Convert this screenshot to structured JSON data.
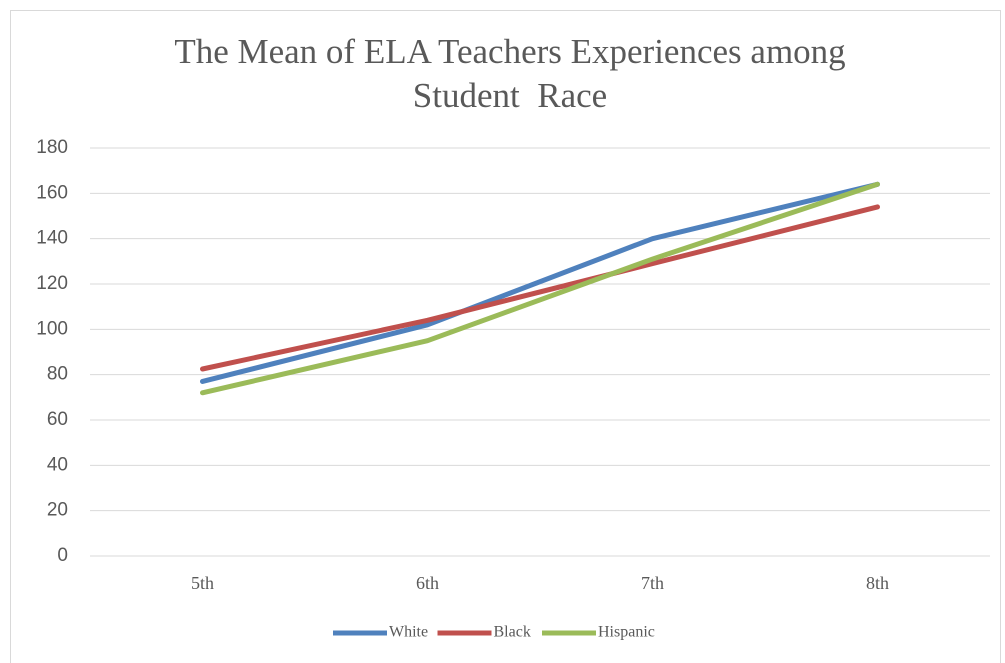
{
  "chart_data": {
    "type": "line",
    "title": "The Mean of ELA Teachers Experiences among Student  Race",
    "categories": [
      "5th",
      "6th",
      "7th",
      "8th"
    ],
    "series": [
      {
        "name": "White",
        "color": "#4f81bd",
        "values": [
          77,
          102,
          140,
          164
        ]
      },
      {
        "name": "Black",
        "color": "#c0504d",
        "values": [
          82.5,
          104,
          129,
          154
        ]
      },
      {
        "name": "Hispanic",
        "color": "#9bbb59",
        "values": [
          72,
          95,
          131,
          164
        ]
      }
    ],
    "ylim": [
      0,
      180
    ],
    "yticks": [
      0,
      20,
      40,
      60,
      80,
      100,
      120,
      140,
      160,
      180
    ],
    "grid": true,
    "legend": "bottom"
  }
}
